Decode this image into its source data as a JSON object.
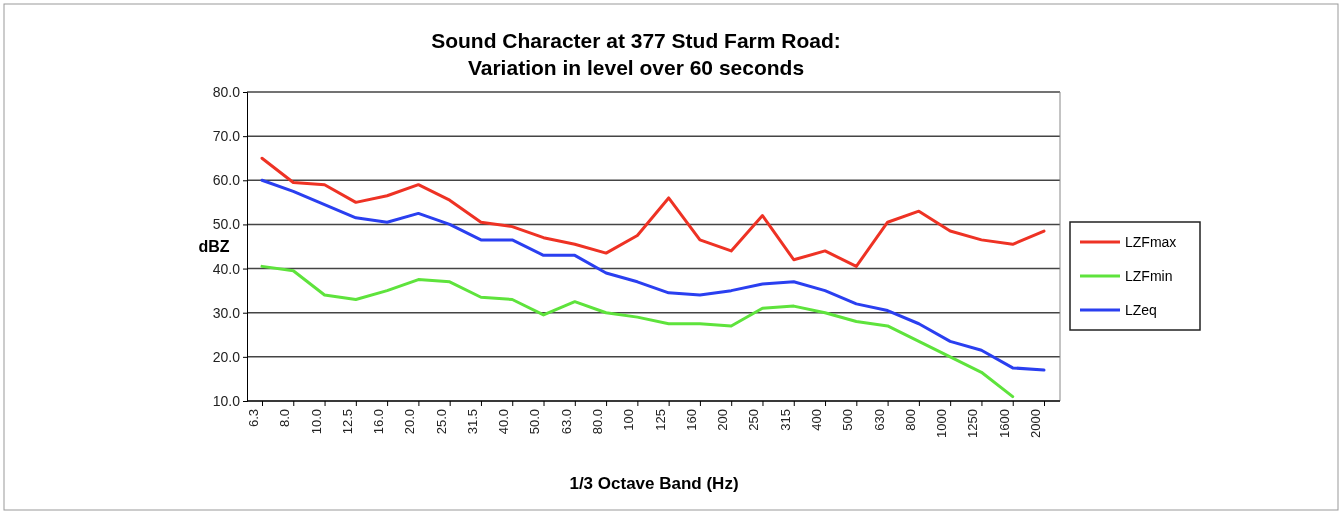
{
  "chart_data": {
    "type": "line",
    "title": "Sound Character at 377 Stud Farm Road:\nVariation in level over 60 seconds",
    "xlabel": "1/3 Octave Band (Hz)",
    "ylabel": "dBZ",
    "categories": [
      "6.3",
      "8.0",
      "10.0",
      "12.5",
      "16.0",
      "20.0",
      "25.0",
      "31.5",
      "40.0",
      "50.0",
      "63.0",
      "80.0",
      "100",
      "125",
      "160",
      "200",
      "250",
      "315",
      "400",
      "500",
      "630",
      "800",
      "1000",
      "1250",
      "1600",
      "2000"
    ],
    "series": [
      {
        "name": "LZFmax",
        "color": "#ee3224",
        "values": [
          65,
          59.5,
          59,
          55,
          56.5,
          59,
          55.5,
          50.5,
          49.5,
          47,
          45.5,
          43.5,
          47.5,
          56,
          46.5,
          44,
          52,
          42,
          44,
          40.5,
          50.5,
          53,
          48.5,
          46.5,
          45.5,
          48.5
        ]
      },
      {
        "name": "LZFmin",
        "color": "#5ee33c",
        "values": [
          40.5,
          39.5,
          34,
          33,
          35,
          37.5,
          37,
          33.5,
          33,
          29.5,
          32.5,
          30,
          29,
          27.5,
          27.5,
          27,
          31,
          31.5,
          30,
          28,
          27,
          23.5,
          20,
          16.5,
          11,
          null
        ]
      },
      {
        "name": "LZeq",
        "color": "#2a3ff0",
        "values": [
          60,
          57.5,
          54.5,
          51.5,
          50.5,
          52.5,
          50,
          46.5,
          46.5,
          43,
          43,
          39,
          37,
          34.5,
          34,
          35,
          36.5,
          37,
          35,
          32,
          30.5,
          27.5,
          23.5,
          21.5,
          17.5,
          17
        ]
      }
    ],
    "ylim": [
      10,
      80
    ],
    "yticks": [
      {
        "value": 10,
        "label": "10.0"
      },
      {
        "value": 20,
        "label": "20.0"
      },
      {
        "value": 30,
        "label": "30.0"
      },
      {
        "value": 40,
        "label": "40.0"
      },
      {
        "value": 50,
        "label": "50.0"
      },
      {
        "value": 60,
        "label": "60.0"
      },
      {
        "value": 70,
        "label": "70.0"
      },
      {
        "value": 80,
        "label": "80.0"
      }
    ],
    "grid": "y",
    "legend": "right",
    "marker": "none",
    "line_style": "solid"
  }
}
